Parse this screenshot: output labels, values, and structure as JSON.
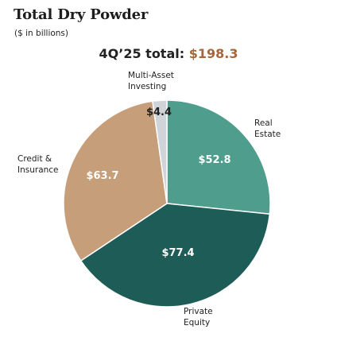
{
  "header": {
    "title": "Total Dry Powder",
    "subtitle": "($ in billions)",
    "total_label": "4Q’25 total:",
    "total_value": "$198.3"
  },
  "chart_data": {
    "type": "pie",
    "title": "Total Dry Powder",
    "subtitle": "($ in billions)",
    "total": 198.3,
    "slices": [
      {
        "label": [
          "Real",
          "Estate"
        ],
        "value": 52.8,
        "value_label": "$52.8",
        "color": "#4f9e8d",
        "text_color": "#ffffff"
      },
      {
        "label": [
          "Private",
          "Equity"
        ],
        "value": 77.4,
        "value_label": "$77.4",
        "color": "#1d5c57",
        "text_color": "#ffffff"
      },
      {
        "label": [
          "Credit &",
          "Insurance"
        ],
        "value": 63.7,
        "value_label": "$63.7",
        "color": "#c69e7a",
        "text_color": "#ffffff"
      },
      {
        "label": [
          "Multi-Asset",
          "Investing"
        ],
        "value": 4.4,
        "value_label": "$4.4",
        "color": "#d0d3d8",
        "text_color": "#222222"
      }
    ]
  }
}
